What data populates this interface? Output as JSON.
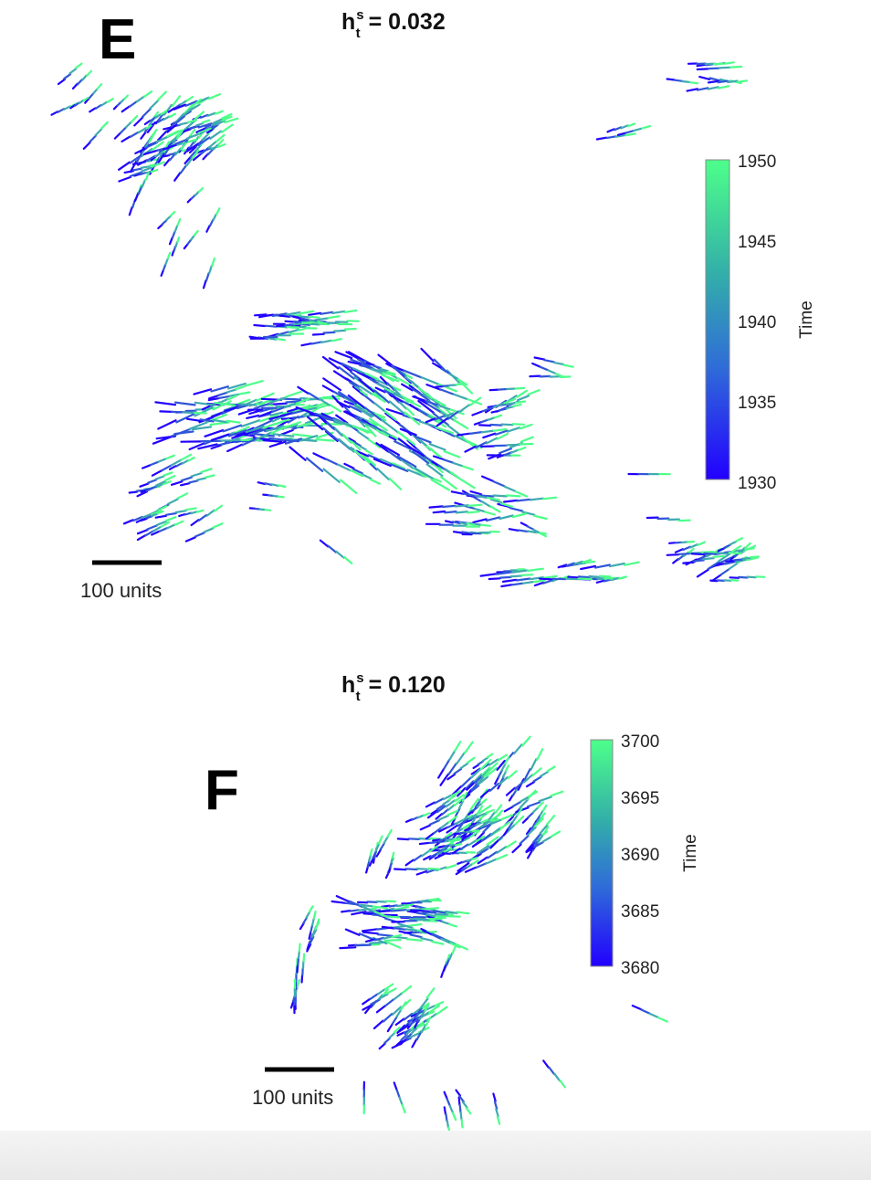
{
  "chart_data": [
    {
      "panel": "E",
      "type": "scatter",
      "title": {
        "base": "h",
        "sup": "s",
        "sub": "t",
        "value": "= 0.032"
      },
      "colorbar": {
        "label": "Time",
        "min": 1930,
        "max": 1950,
        "ticks": [
          "1950",
          "1945",
          "1940",
          "1935",
          "1930"
        ],
        "color_low": "#2200ff",
        "color_high": "#4dff8a"
      },
      "scale_bar": {
        "label": "100 units",
        "length_units": 100
      }
    },
    {
      "panel": "F",
      "type": "scatter",
      "title": {
        "base": "h",
        "sup": "s",
        "sub": "t",
        "value": "= 0.120"
      },
      "colorbar": {
        "label": "Time",
        "min": 3680,
        "max": 3700,
        "ticks": [
          "3700",
          "3695",
          "3690",
          "3685",
          "3680"
        ],
        "color_low": "#2200ff",
        "color_high": "#4dff8a"
      },
      "scale_bar": {
        "label": "100 units",
        "length_units": 100
      }
    }
  ]
}
